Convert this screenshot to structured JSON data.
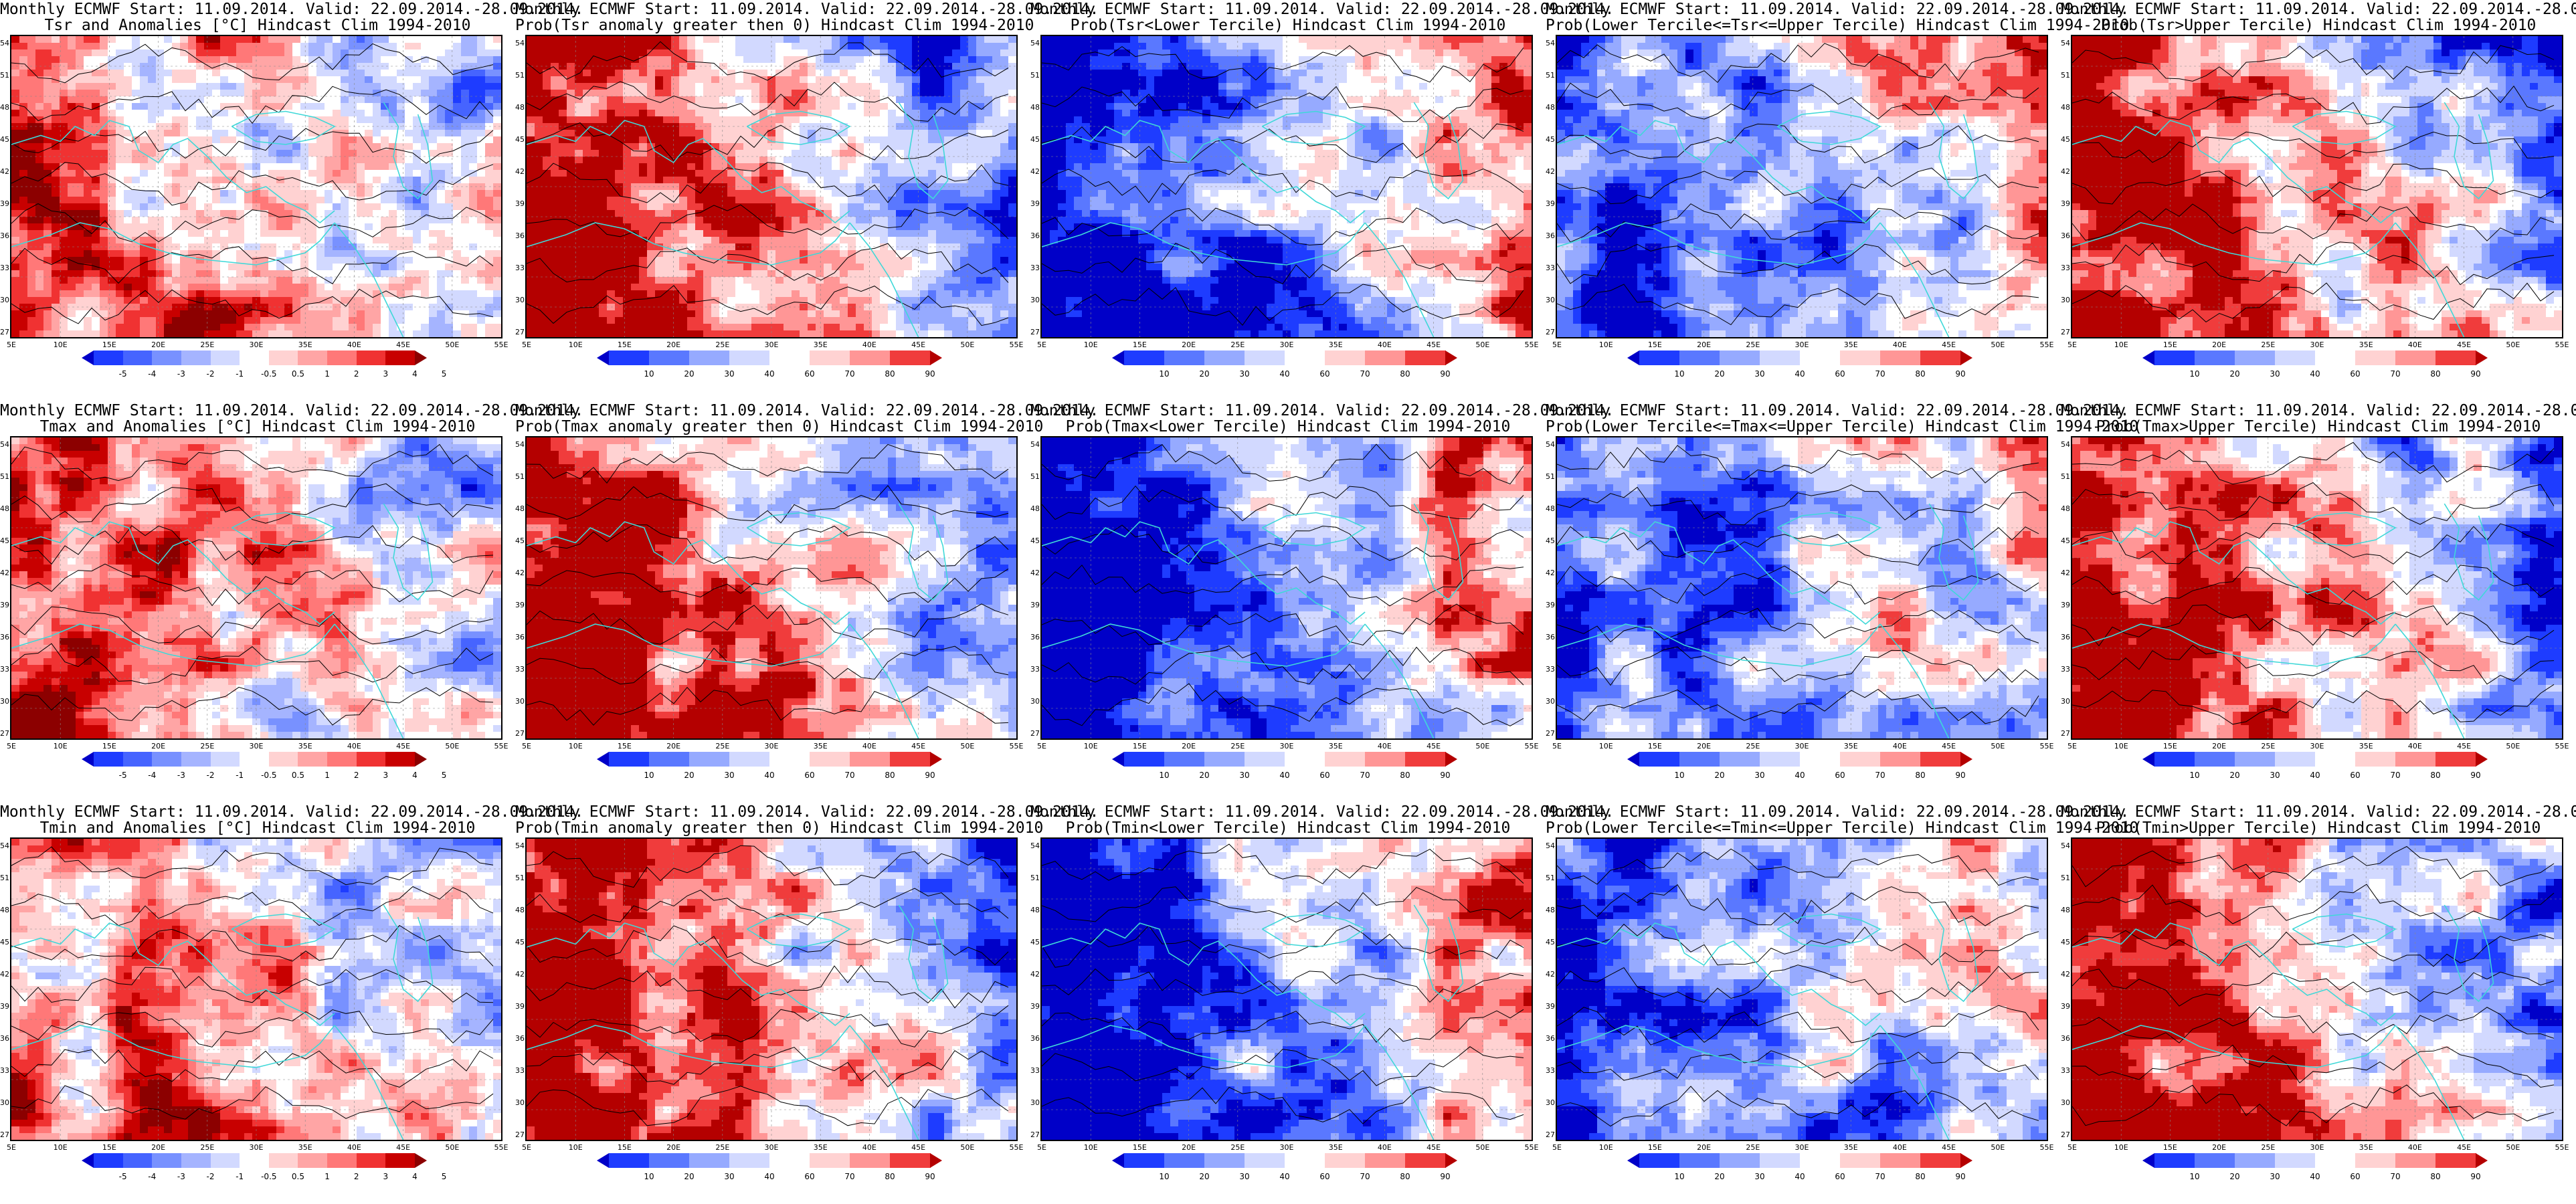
{
  "header_lines": [
    "Monthly ECMWF Start: 11.09.2014. Valid: 22.09.2014.-28.09.2014."
  ],
  "panels": [
    {
      "id": "tsr-anom",
      "title2": "Tsr and Anomalies [°C] Hindcast Clim 1994-2010",
      "scheme": "anom",
      "bias": 0.35
    },
    {
      "id": "tsr-prob-pos",
      "title2": "Prob(Tsr anomaly greater then 0) Hindcast Clim 1994-2010",
      "scheme": "prob",
      "bias": 0.9
    },
    {
      "id": "tsr-lower",
      "title2": "Prob(Tsr<Lower Tercile) Hindcast Clim 1994-2010",
      "scheme": "prob",
      "bias": -0.9
    },
    {
      "id": "tsr-middle",
      "title2": "Prob(Lower Tercile<=Tsr<=Upper Tercile) Hindcast Clim 1994-2010",
      "scheme": "prob",
      "bias": -0.5
    },
    {
      "id": "tsr-upper",
      "title2": "Prob(Tsr>Upper Tercile) Hindcast Clim 1994-2010",
      "scheme": "prob",
      "bias": 0.8
    },
    {
      "id": "tmax-anom",
      "title2": "Tmax and Anomalies [°C] Hindcast Clim 1994-2010",
      "scheme": "anom",
      "bias": 0.4
    },
    {
      "id": "tmax-prob-pos",
      "title2": "Prob(Tmax anomaly greater then 0) Hindcast Clim 1994-2010",
      "scheme": "prob",
      "bias": 0.9
    },
    {
      "id": "tmax-lower",
      "title2": "Prob(Tmax<Lower Tercile) Hindcast Clim 1994-2010",
      "scheme": "prob",
      "bias": -0.9
    },
    {
      "id": "tmax-middle",
      "title2": "Prob(Lower Tercile<=Tmax<=Upper Tercile) Hindcast Clim 1994-2010",
      "scheme": "prob",
      "bias": -0.5
    },
    {
      "id": "tmax-upper",
      "title2": "Prob(Tmax>Upper Tercile) Hindcast Clim 1994-2010",
      "scheme": "prob",
      "bias": 0.8
    },
    {
      "id": "tmin-anom",
      "title2": "Tmin and Anomalies [°C] Hindcast Clim 1994-2010",
      "scheme": "anom",
      "bias": 0.35
    },
    {
      "id": "tmin-prob-pos",
      "title2": "Prob(Tmin anomaly greater then 0) Hindcast Clim 1994-2010",
      "scheme": "prob",
      "bias": 0.9
    },
    {
      "id": "tmin-lower",
      "title2": "Prob(Tmin<Lower Tercile) Hindcast Clim 1994-2010",
      "scheme": "prob",
      "bias": -0.9
    },
    {
      "id": "tmin-middle",
      "title2": "Prob(Lower Tercile<=Tmin<=Upper Tercile) Hindcast Clim 1994-2010",
      "scheme": "prob",
      "bias": -0.5
    },
    {
      "id": "tmin-upper",
      "title2": "Prob(Tmin>Upper Tercile) Hindcast Clim 1994-2010",
      "scheme": "prob",
      "bias": 0.8
    }
  ],
  "lat_labels": [
    "54N",
    "51N",
    "48N",
    "45N",
    "42N",
    "39N",
    "36N",
    "33N",
    "30N",
    "27N"
  ],
  "lon_labels": [
    "5E",
    "10E",
    "15E",
    "20E",
    "25E",
    "30E",
    "35E",
    "40E",
    "45E",
    "50E",
    "55E"
  ],
  "legends": {
    "anom": {
      "labels": [
        "-5",
        "-4",
        "-3",
        "-2",
        "-1",
        "-0.5",
        "0.5",
        "1",
        "2",
        "3",
        "4",
        "5"
      ],
      "colors": [
        "#0000c8",
        "#1e3cff",
        "#4664ff",
        "#7891ff",
        "#a5b4ff",
        "#d2d9ff",
        "#ffffff",
        "#ffd2d2",
        "#ffa5a5",
        "#ff7878",
        "#f03232",
        "#c80000",
        "#8c0000"
      ]
    },
    "prob": {
      "labels": [
        "10",
        "20",
        "30",
        "40",
        "60",
        "70",
        "80",
        "90"
      ],
      "colors": [
        "#0000c8",
        "#1e3cff",
        "#5a78ff",
        "#96aaff",
        "#d2d9ff",
        "#ffffff",
        "#ffd2d2",
        "#ff9696",
        "#f03c3c",
        "#b40000"
      ]
    }
  },
  "colors": {
    "coastline": "#3fd8d8",
    "contour": "#000000",
    "frame": "#000000"
  }
}
